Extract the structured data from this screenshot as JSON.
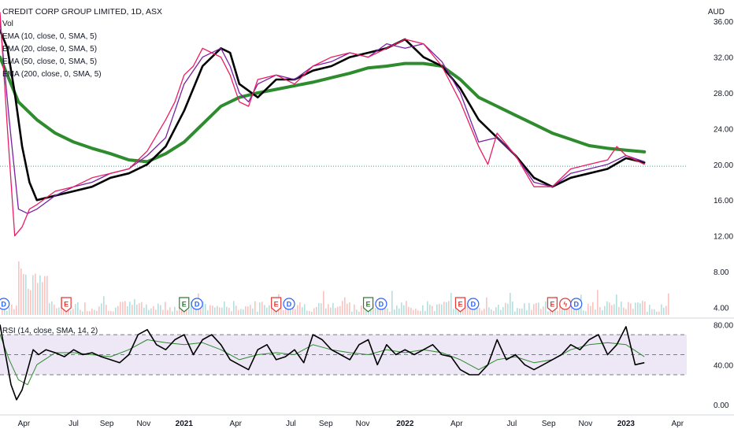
{
  "header": {
    "title": "CREDIT CORP GROUP LIMITED, 1D, ASX",
    "indicators": [
      "Vol",
      "EMA (10, close, 0, SMA, 5)",
      "EMA (20, close, 0, SMA, 5)",
      "EMA (50, close, 0, SMA, 5)",
      "EMA (200, close, 0, SMA, 5)"
    ],
    "currency": "AUD"
  },
  "rsi_panel": {
    "label": "RSI (14, close, SMA, 14, 2)"
  },
  "colors": {
    "ema10": "#e91e63",
    "ema20": "#7b1fa2",
    "ema50": "#000000",
    "ema200": "#2e8b2e",
    "up": "#26a69a",
    "down": "#ef5350",
    "rsi": "#000000",
    "rsi_ma": "#2e8b2e",
    "rsi_band": "#ede7f6",
    "last_price_line": "#26a69a",
    "event_dividend": "#2962ff",
    "event_earnings_red": "#e53935",
    "event_earnings_green": "#2e7d32"
  },
  "chart_data": [
    {
      "type": "line",
      "title": "CREDIT CORP GROUP LIMITED, 1D, ASX",
      "currency": "AUD",
      "x_ticks": [
        "Apr",
        "Jul",
        "Sep",
        "Nov",
        "2021",
        "Apr",
        "Jul",
        "Sep",
        "Nov",
        "2022",
        "Apr",
        "Jul",
        "Sep",
        "Nov",
        "2023",
        "Apr"
      ],
      "x_tick_pos": [
        1.3,
        4.0,
        5.8,
        7.8,
        10.0,
        12.8,
        15.8,
        17.7,
        19.7,
        22.0,
        24.8,
        27.8,
        29.8,
        31.8,
        34.0,
        36.8
      ],
      "xlim": [
        0,
        37.3
      ],
      "y_ticks": [
        4.0,
        8.0,
        12.0,
        16.0,
        20.0,
        24.0,
        28.0,
        32.0,
        36.0
      ],
      "ylim": [
        2.8,
        38.4
      ],
      "last_price": 19.8,
      "series": [
        {
          "name": "EMA (200, close, 0, SMA, 5)",
          "style": "ema200",
          "x": [
            0,
            1,
            2,
            3,
            4,
            5,
            6,
            7,
            8,
            9,
            10,
            11,
            12,
            13,
            14,
            15,
            16,
            17,
            18,
            19,
            20,
            21,
            22,
            23,
            24,
            25,
            26,
            27,
            28,
            29,
            30,
            31,
            32,
            33,
            34,
            35
          ],
          "y": [
            32,
            27,
            25,
            23.5,
            22.5,
            21.8,
            21.2,
            20.5,
            20.3,
            21.2,
            22.5,
            24.5,
            26.5,
            27.5,
            28,
            28.4,
            28.8,
            29.2,
            29.7,
            30.2,
            30.8,
            31,
            31.3,
            31.3,
            31,
            29.5,
            27.5,
            26.5,
            25.5,
            24.5,
            23.5,
            22.8,
            22.1,
            21.8,
            21.6,
            21.4
          ]
        },
        {
          "name": "EMA (50, close, 0, SMA, 5)",
          "style": "ema50",
          "x": [
            0,
            0.4,
            0.8,
            1.2,
            1.6,
            2,
            3,
            4,
            5,
            6,
            7,
            8,
            9,
            10,
            11,
            12,
            12.5,
            13,
            14,
            15,
            16,
            17,
            18,
            19,
            20,
            21,
            22,
            23,
            24,
            25,
            26,
            27,
            28,
            29,
            30,
            31,
            32,
            33,
            34,
            35
          ],
          "y": [
            35,
            33,
            28,
            22,
            18,
            16,
            16.5,
            17,
            17.5,
            18.5,
            19,
            20,
            22,
            26,
            31,
            33,
            32.5,
            29,
            27.5,
            29.5,
            29.5,
            30.5,
            31,
            32,
            32.5,
            33,
            34,
            32,
            31,
            28.5,
            25,
            23,
            21,
            18.5,
            17.5,
            18.5,
            19,
            19.5,
            20.7,
            20.2
          ]
        },
        {
          "name": "EMA (20, close, 0, SMA, 5)",
          "style": "ema20",
          "x": [
            0,
            0.5,
            1,
            1.5,
            2,
            3,
            4,
            5,
            6,
            7,
            8,
            9,
            10,
            10.5,
            11,
            12,
            12.5,
            13,
            13.5,
            14,
            15,
            16,
            17,
            18,
            19,
            20,
            21,
            22,
            23,
            24,
            25,
            26,
            27,
            28,
            29,
            30,
            31,
            32,
            33,
            34,
            35
          ],
          "y": [
            36,
            25,
            15,
            14.5,
            15,
            16.5,
            17.5,
            18,
            19,
            19.5,
            21,
            23,
            29,
            30.5,
            32,
            33,
            31,
            28,
            27,
            29,
            30,
            29.5,
            31,
            31.5,
            32.5,
            32,
            33.5,
            33,
            33.5,
            31.5,
            28,
            22.5,
            23,
            21,
            18,
            17.5,
            19,
            19.5,
            20,
            21,
            20.3
          ]
        },
        {
          "name": "EMA (10, close, 0, SMA, 5)",
          "style": "ema10",
          "x": [
            0,
            0.4,
            0.8,
            1.2,
            1.6,
            2,
            3,
            4,
            5,
            6,
            7,
            8,
            9,
            9.5,
            10,
            10.5,
            11,
            11.5,
            12,
            12.5,
            13,
            13.5,
            14,
            15,
            16,
            17,
            18,
            19,
            20,
            21,
            22,
            23,
            24,
            25,
            26,
            26.5,
            27,
            28,
            29,
            30,
            31,
            32,
            33,
            33.5,
            34,
            35
          ],
          "y": [
            37,
            24,
            12,
            13,
            15,
            15.5,
            17,
            17.5,
            18.5,
            19,
            19.5,
            21.5,
            25,
            27,
            30,
            31,
            33,
            32.5,
            32,
            30,
            27,
            26.5,
            29.5,
            30,
            29,
            31,
            32,
            32.5,
            32,
            33,
            34,
            33.5,
            31,
            27,
            22,
            20,
            23.5,
            21,
            17.5,
            17.5,
            19.5,
            20,
            20.5,
            22,
            21,
            20
          ]
        }
      ]
    },
    {
      "type": "line",
      "title": "RSI (14, close, SMA, 14, 2)",
      "y_ticks": [
        0.0,
        40.0,
        80.0
      ],
      "ylim": [
        -3,
        85
      ],
      "band": [
        30,
        70
      ],
      "midline": 50,
      "series": [
        {
          "name": "RSI",
          "style": "rsi",
          "x": [
            0,
            0.3,
            0.6,
            0.9,
            1.2,
            1.5,
            1.8,
            2.1,
            2.5,
            3,
            3.5,
            4,
            4.5,
            5,
            5.5,
            6,
            6.5,
            7,
            7.5,
            8,
            8.5,
            9,
            9.5,
            10,
            10.5,
            11,
            11.5,
            12,
            12.5,
            13,
            13.5,
            14,
            14.5,
            15,
            15.5,
            16,
            16.5,
            17,
            17.5,
            18,
            18.5,
            19,
            19.5,
            20,
            20.5,
            21,
            21.5,
            22,
            22.5,
            23,
            23.5,
            24,
            24.5,
            25,
            25.5,
            26,
            26.5,
            27,
            27.5,
            28,
            28.5,
            29,
            29.5,
            30,
            30.5,
            31,
            31.5,
            32,
            32.5,
            33,
            33.5,
            34,
            34.5,
            35
          ],
          "y": [
            80,
            50,
            20,
            5,
            15,
            35,
            55,
            50,
            55,
            52,
            48,
            55,
            50,
            52,
            48,
            45,
            42,
            50,
            70,
            75,
            60,
            55,
            65,
            70,
            50,
            65,
            70,
            60,
            45,
            40,
            35,
            55,
            60,
            45,
            48,
            55,
            42,
            70,
            65,
            55,
            50,
            45,
            60,
            65,
            40,
            60,
            50,
            55,
            50,
            55,
            60,
            50,
            48,
            35,
            30,
            30,
            40,
            65,
            45,
            50,
            40,
            35,
            40,
            45,
            50,
            60,
            55,
            65,
            70,
            50,
            60,
            78,
            40,
            42
          ]
        },
        {
          "name": "RSI MA",
          "style": "rsi_ma",
          "x": [
            0,
            0.5,
            1,
            1.5,
            2,
            3,
            4,
            5,
            6,
            7,
            8,
            9,
            10,
            11,
            12,
            13,
            14,
            15,
            16,
            17,
            18,
            19,
            20,
            21,
            22,
            23,
            24,
            25,
            26,
            27,
            28,
            29,
            30,
            31,
            32,
            33,
            34,
            35
          ],
          "y": [
            70,
            45,
            25,
            20,
            40,
            52,
            52,
            50,
            48,
            55,
            65,
            62,
            60,
            62,
            55,
            45,
            50,
            52,
            50,
            60,
            55,
            52,
            50,
            55,
            52,
            55,
            52,
            45,
            35,
            45,
            48,
            42,
            45,
            55,
            60,
            62,
            60,
            48
          ]
        }
      ]
    }
  ],
  "event_markers": [
    {
      "letter": "D",
      "kind": "dividend",
      "x": 0.2
    },
    {
      "letter": "E",
      "kind": "earnings_red",
      "x": 3.6
    },
    {
      "letter": "E",
      "kind": "earnings_green",
      "x": 10.0
    },
    {
      "letter": "D",
      "kind": "dividend",
      "x": 10.7
    },
    {
      "letter": "E",
      "kind": "earnings_red",
      "x": 15.0
    },
    {
      "letter": "D",
      "kind": "dividend",
      "x": 15.7
    },
    {
      "letter": "E",
      "kind": "earnings_green",
      "x": 20.0
    },
    {
      "letter": "D",
      "kind": "dividend",
      "x": 20.7
    },
    {
      "letter": "E",
      "kind": "earnings_red",
      "x": 25.0
    },
    {
      "letter": "D",
      "kind": "dividend",
      "x": 25.7
    },
    {
      "letter": "E",
      "kind": "earnings_red",
      "x": 30.0
    },
    {
      "letter": "ϟ",
      "kind": "split",
      "x": 30.7
    },
    {
      "letter": "D",
      "kind": "dividend",
      "x": 31.3
    }
  ]
}
